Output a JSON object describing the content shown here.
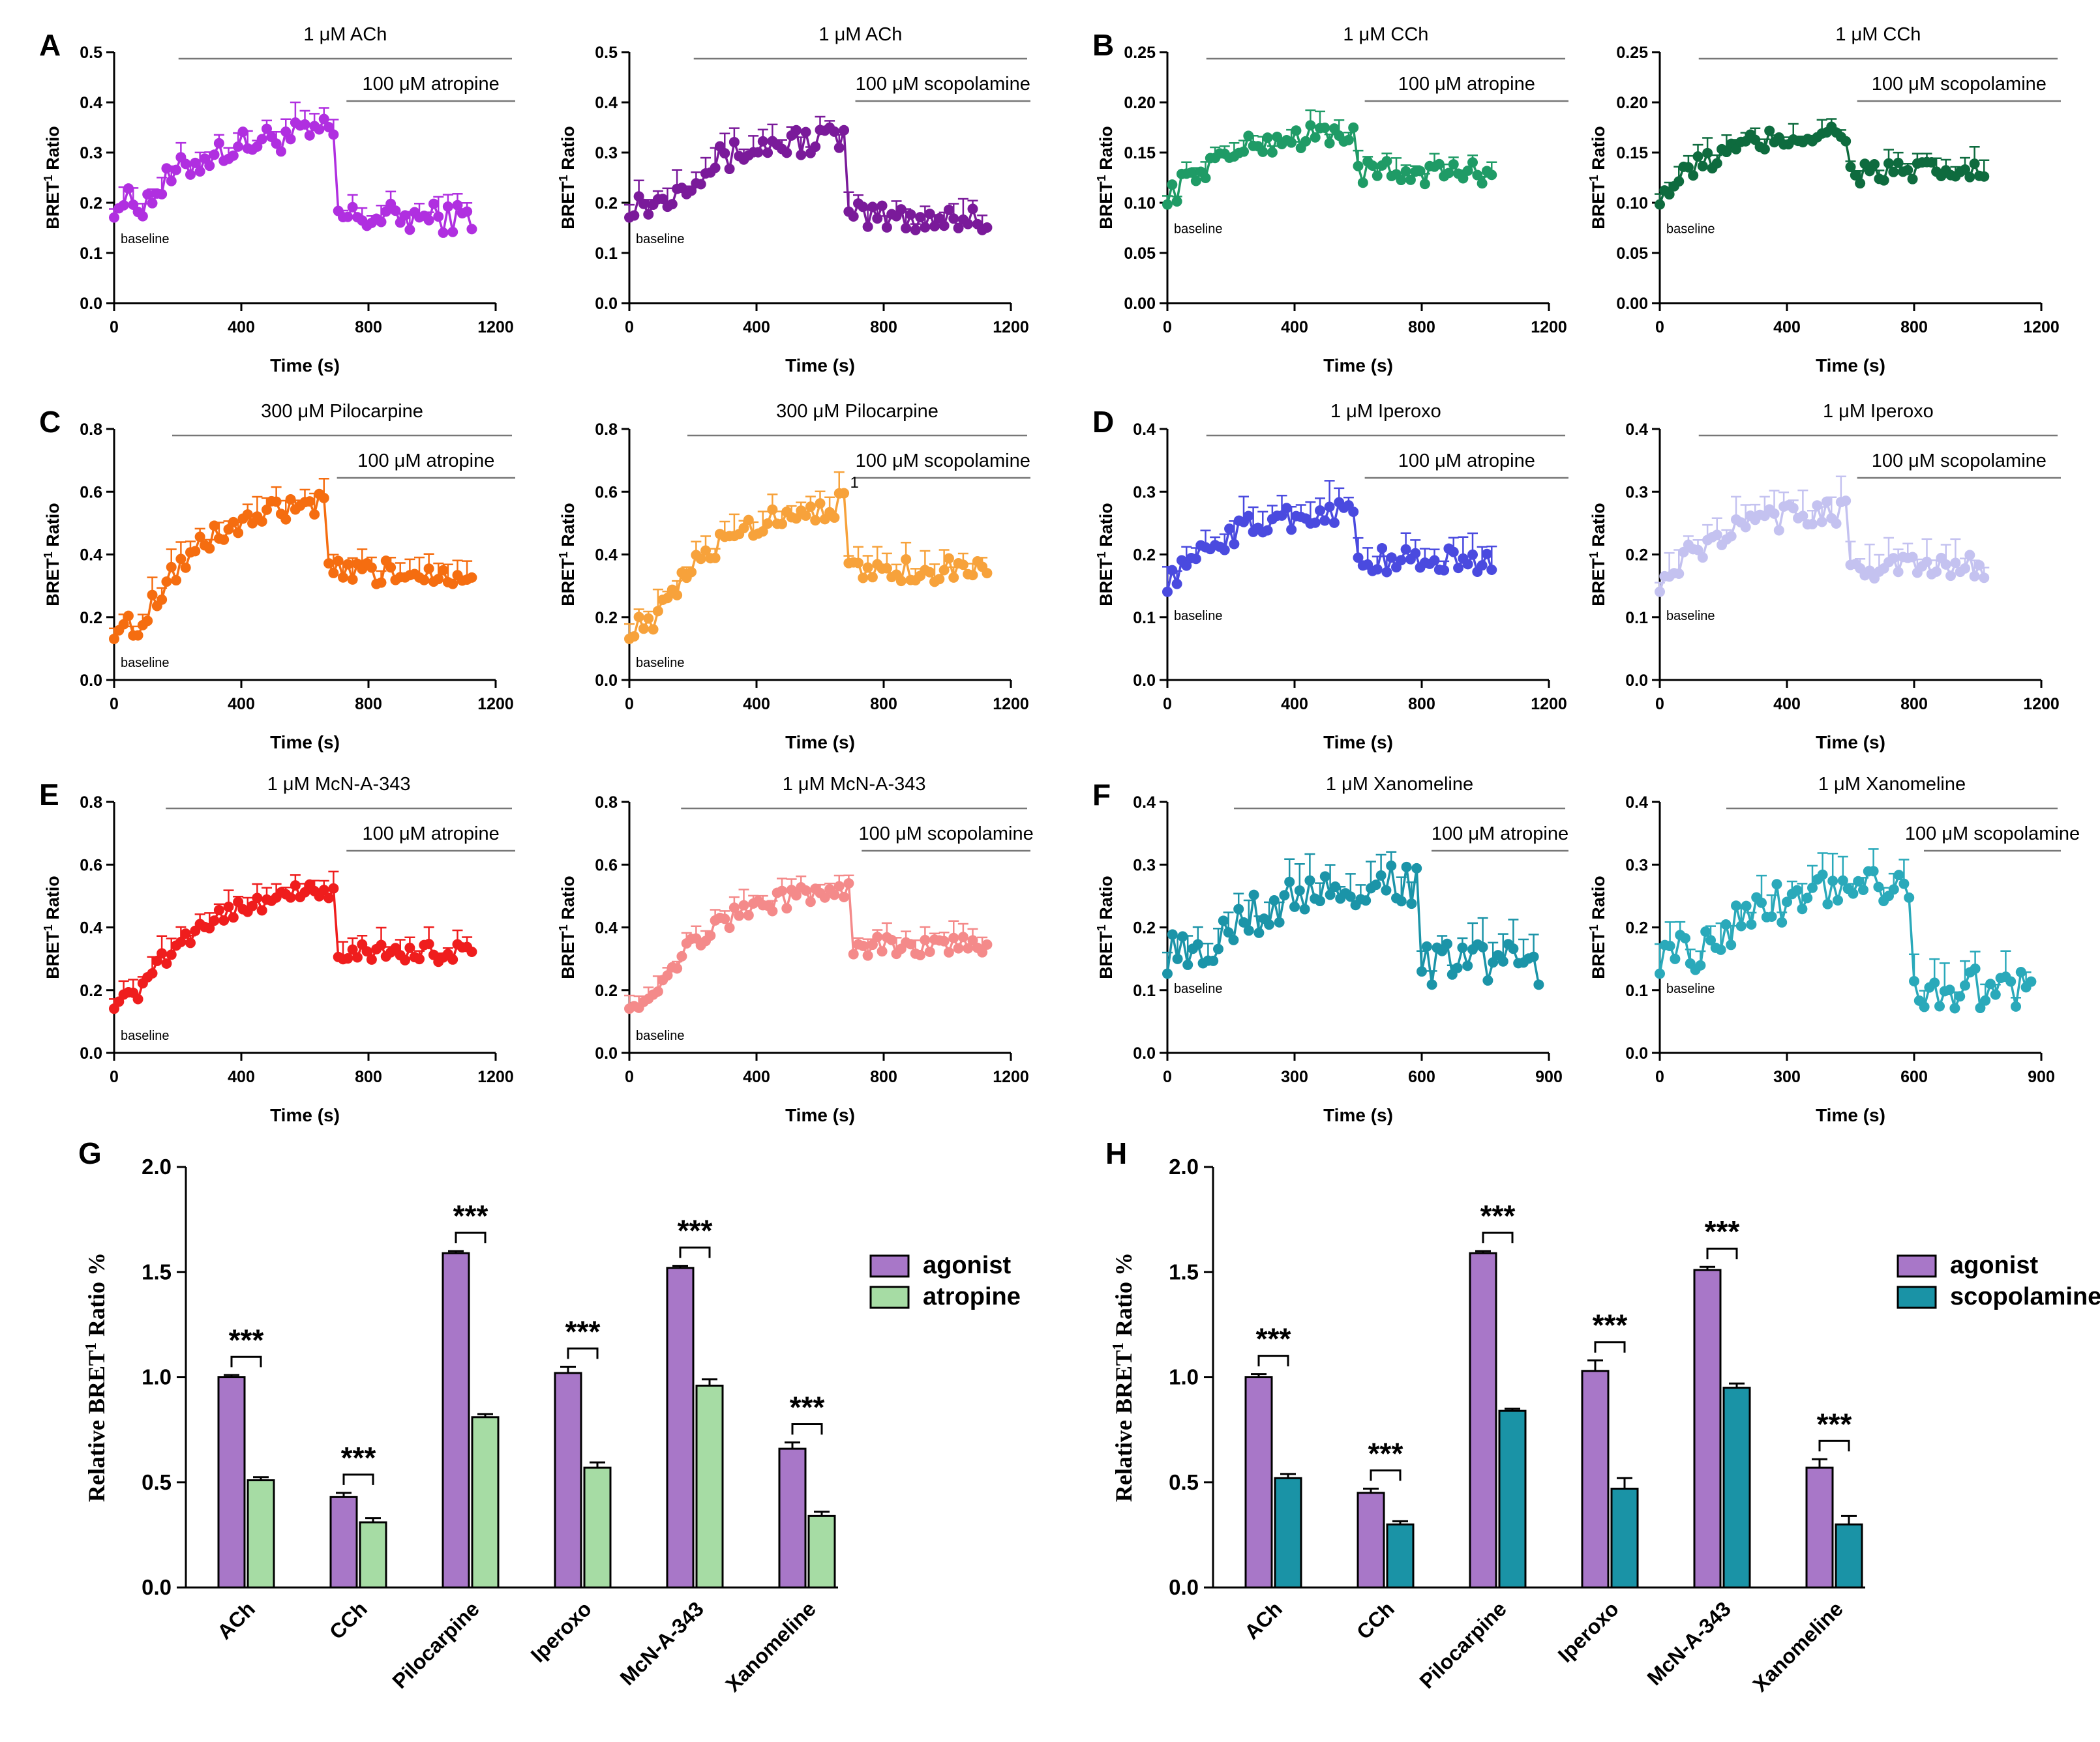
{
  "figure": {
    "common": {
      "ylabel_main": "BRET",
      "ylabel_sup": "1",
      "ylabel_end": " Ratio",
      "xlabel": "Time (s)",
      "baseline_label": "baseline"
    },
    "panels": [
      {
        "letter": "A",
        "agonist": "1 μM ACh",
        "antagonist": "100 μM atropine",
        "color": "#b02fe0",
        "ylim": [
          0,
          0.5
        ],
        "yticks": [
          "0.0",
          "0.1",
          "0.2",
          "0.3",
          "0.4",
          "0.5"
        ],
        "xlim": [
          0,
          1200
        ],
        "xticks": [
          "0",
          "400",
          "800",
          "1200"
        ],
        "agonist_start": 100,
        "switch": 700,
        "end": 1130,
        "baseline": 0.2,
        "peak": 0.34,
        "post": 0.17,
        "err": 0.03,
        "noise": 0.03
      },
      {
        "letter": "",
        "agonist": "1 μM ACh",
        "antagonist": "100 μM scopolamine",
        "color": "#7a1a9a",
        "ylim": [
          0,
          0.5
        ],
        "yticks": [
          "0.0",
          "0.1",
          "0.2",
          "0.3",
          "0.4",
          "0.5"
        ],
        "xlim": [
          0,
          1200
        ],
        "xticks": [
          "0",
          "400",
          "800",
          "1200"
        ],
        "agonist_start": 100,
        "switch": 680,
        "end": 1130,
        "baseline": 0.2,
        "peak": 0.33,
        "post": 0.17,
        "err": 0.03,
        "noise": 0.03
      },
      {
        "letter": "B",
        "agonist": "1 μM CCh",
        "antagonist": "100 μM atropine",
        "color": "#1f9b66",
        "ylim": [
          0,
          0.25
        ],
        "yticks": [
          "0.00",
          "0.05",
          "0.10",
          "0.15",
          "0.20",
          "0.25"
        ],
        "xlim": [
          0,
          1200
        ],
        "xticks": [
          "0",
          "400",
          "800",
          "1200"
        ],
        "agonist_start": 20,
        "switch": 590,
        "end": 1030,
        "baseline": 0.11,
        "peak": 0.17,
        "post": 0.13,
        "err": 0.012,
        "noise": 0.012
      },
      {
        "letter": "",
        "agonist": "1 μM CCh",
        "antagonist": "100 μM scopolamine",
        "color": "#0e6b3e",
        "ylim": [
          0,
          0.25
        ],
        "yticks": [
          "0.00",
          "0.05",
          "0.10",
          "0.15",
          "0.20",
          "0.25"
        ],
        "xlim": [
          0,
          1200
        ],
        "xticks": [
          "0",
          "400",
          "800",
          "1200"
        ],
        "agonist_start": 20,
        "switch": 590,
        "end": 1030,
        "baseline": 0.11,
        "peak": 0.17,
        "post": 0.13,
        "err": 0.012,
        "noise": 0.012
      },
      {
        "letter": "C",
        "agonist": "300 μM Pilocarpine",
        "antagonist": "100 μM atropine",
        "color": "#f56d10",
        "ylim": [
          0,
          0.8
        ],
        "yticks": [
          "0.0",
          "0.2",
          "0.4",
          "0.6",
          "0.8"
        ],
        "xlim": [
          0,
          1200
        ],
        "xticks": [
          "0",
          "400",
          "800",
          "1200"
        ],
        "agonist_start": 80,
        "switch": 670,
        "end": 1130,
        "baseline": 0.17,
        "peak": 0.56,
        "post": 0.34,
        "err": 0.05,
        "noise": 0.04
      },
      {
        "letter": "",
        "agonist": "300 μM Pilocarpine",
        "antagonist": "100 μM scopolamine",
        "color": "#f7a23b",
        "ylim": [
          0,
          0.8
        ],
        "yticks": [
          "0.0",
          "0.2",
          "0.4",
          "0.6",
          "0.8"
        ],
        "xlim": [
          0,
          1200
        ],
        "xticks": [
          "0",
          "400",
          "800",
          "1200"
        ],
        "agonist_start": 80,
        "switch": 680,
        "end": 1130,
        "baseline": 0.17,
        "peak": 0.56,
        "post": 0.35,
        "err": 0.05,
        "noise": 0.04,
        "stray": "1"
      },
      {
        "letter": "D",
        "agonist": "1 μM Iperoxo",
        "antagonist": "100 μM atropine",
        "color": "#4a4adf",
        "ylim": [
          0,
          0.4
        ],
        "yticks": [
          "0.0",
          "0.1",
          "0.2",
          "0.3",
          "0.4"
        ],
        "xlim": [
          0,
          1200
        ],
        "xticks": [
          "0",
          "400",
          "800",
          "1200"
        ],
        "agonist_start": 20,
        "switch": 590,
        "end": 1030,
        "baseline": 0.16,
        "peak": 0.27,
        "post": 0.19,
        "err": 0.03,
        "noise": 0.02
      },
      {
        "letter": "",
        "agonist": "1 μM Iperoxo",
        "antagonist": "100 μM scopolamine",
        "color": "#c4c2f0",
        "ylim": [
          0,
          0.4
        ],
        "yticks": [
          "0.0",
          "0.1",
          "0.2",
          "0.3",
          "0.4"
        ],
        "xlim": [
          0,
          1200
        ],
        "xticks": [
          "0",
          "400",
          "800",
          "1200"
        ],
        "agonist_start": 20,
        "switch": 590,
        "end": 1030,
        "baseline": 0.16,
        "peak": 0.27,
        "post": 0.18,
        "err": 0.03,
        "noise": 0.02
      },
      {
        "letter": "E",
        "agonist": "1 μM McN-A-343",
        "antagonist": "100 μM atropine",
        "color": "#ef1d1d",
        "ylim": [
          0,
          0.8
        ],
        "yticks": [
          "0.0",
          "0.2",
          "0.4",
          "0.6",
          "0.8"
        ],
        "xlim": [
          0,
          1200
        ],
        "xticks": [
          "0",
          "400",
          "800",
          "1200"
        ],
        "agonist_start": 60,
        "switch": 700,
        "end": 1130,
        "baseline": 0.17,
        "peak": 0.52,
        "post": 0.32,
        "err": 0.04,
        "noise": 0.03
      },
      {
        "letter": "",
        "agonist": "1 μM McN-A-343",
        "antagonist": "100 μM scopolamine",
        "color": "#f48a8a",
        "ylim": [
          0,
          0.8
        ],
        "yticks": [
          "0.0",
          "0.2",
          "0.4",
          "0.6",
          "0.8"
        ],
        "xlim": [
          0,
          1200
        ],
        "xticks": [
          "0",
          "400",
          "800",
          "1200"
        ],
        "agonist_start": 60,
        "switch": 700,
        "end": 1130,
        "baseline": 0.17,
        "peak": 0.52,
        "post": 0.34,
        "err": 0.04,
        "noise": 0.03
      },
      {
        "letter": "F",
        "agonist": "1 μM Xanomeline",
        "antagonist": "100 μM atropine",
        "color": "#1b94a8",
        "ylim": [
          0,
          0.4
        ],
        "yticks": [
          "0.0",
          "0.1",
          "0.2",
          "0.3",
          "0.4"
        ],
        "xlim": [
          0,
          900
        ],
        "xticks": [
          "0",
          "300",
          "600",
          "900"
        ],
        "agonist_start": 80,
        "switch": 600,
        "end": 880,
        "baseline": 0.16,
        "peak": 0.27,
        "post": 0.14,
        "err": 0.035,
        "noise": 0.035
      },
      {
        "letter": "",
        "agonist": "1 μM Xanomeline",
        "antagonist": "100 μM scopolamine",
        "color": "#2aa9ba",
        "ylim": [
          0,
          0.4
        ],
        "yticks": [
          "0.0",
          "0.1",
          "0.2",
          "0.3",
          "0.4"
        ],
        "xlim": [
          0,
          900
        ],
        "xticks": [
          "0",
          "300",
          "600",
          "900"
        ],
        "agonist_start": 80,
        "switch": 600,
        "end": 880,
        "baseline": 0.16,
        "peak": 0.27,
        "post": 0.1,
        "err": 0.035,
        "noise": 0.035
      }
    ],
    "bars": [
      {
        "letter": "G",
        "type": "bar",
        "categories": [
          "ACh",
          "CCh",
          "Pilocarpine",
          "Iperoxo",
          "McN-A-343",
          "Xanomeline"
        ],
        "series": [
          {
            "name": "agonist",
            "values": [
              1.0,
              0.43,
              1.59,
              1.02,
              1.52,
              0.66
            ],
            "errors": [
              0.01,
              0.02,
              0.01,
              0.03,
              0.01,
              0.03
            ],
            "color": "#a877c8"
          },
          {
            "name": "atropine",
            "values": [
              0.51,
              0.31,
              0.81,
              0.57,
              0.96,
              0.34
            ],
            "errors": [
              0.015,
              0.02,
              0.015,
              0.025,
              0.03,
              0.02
            ],
            "color": "#a6dca4"
          }
        ],
        "ylim": [
          0,
          2.0
        ],
        "yticks": [
          "0.0",
          "0.5",
          "1.0",
          "1.5",
          "2.0"
        ],
        "ylabel": "Relative BRET",
        "ylabel_sup": "1",
        "ylabel_end": " Ratio %",
        "sig": "***"
      },
      {
        "letter": "H",
        "type": "bar",
        "categories": [
          "ACh",
          "CCh",
          "Pilocarpine",
          "Iperoxo",
          "McN-A-343",
          "Xanomeline"
        ],
        "series": [
          {
            "name": "agonist",
            "values": [
              1.0,
              0.45,
              1.59,
              1.03,
              1.51,
              0.57
            ],
            "errors": [
              0.015,
              0.02,
              0.01,
              0.05,
              0.015,
              0.04
            ],
            "color": "#a877c8"
          },
          {
            "name": "scopolamine",
            "values": [
              0.52,
              0.3,
              0.84,
              0.47,
              0.95,
              0.3
            ],
            "errors": [
              0.02,
              0.015,
              0.01,
              0.05,
              0.02,
              0.04
            ],
            "color": "#1a93a6"
          }
        ],
        "ylim": [
          0,
          2.0
        ],
        "yticks": [
          "0.0",
          "0.5",
          "1.0",
          "1.5",
          "2.0"
        ],
        "ylabel": "Relative BRET",
        "ylabel_sup": "1",
        "ylabel_end": " Ratio %",
        "sig": "***"
      }
    ]
  }
}
